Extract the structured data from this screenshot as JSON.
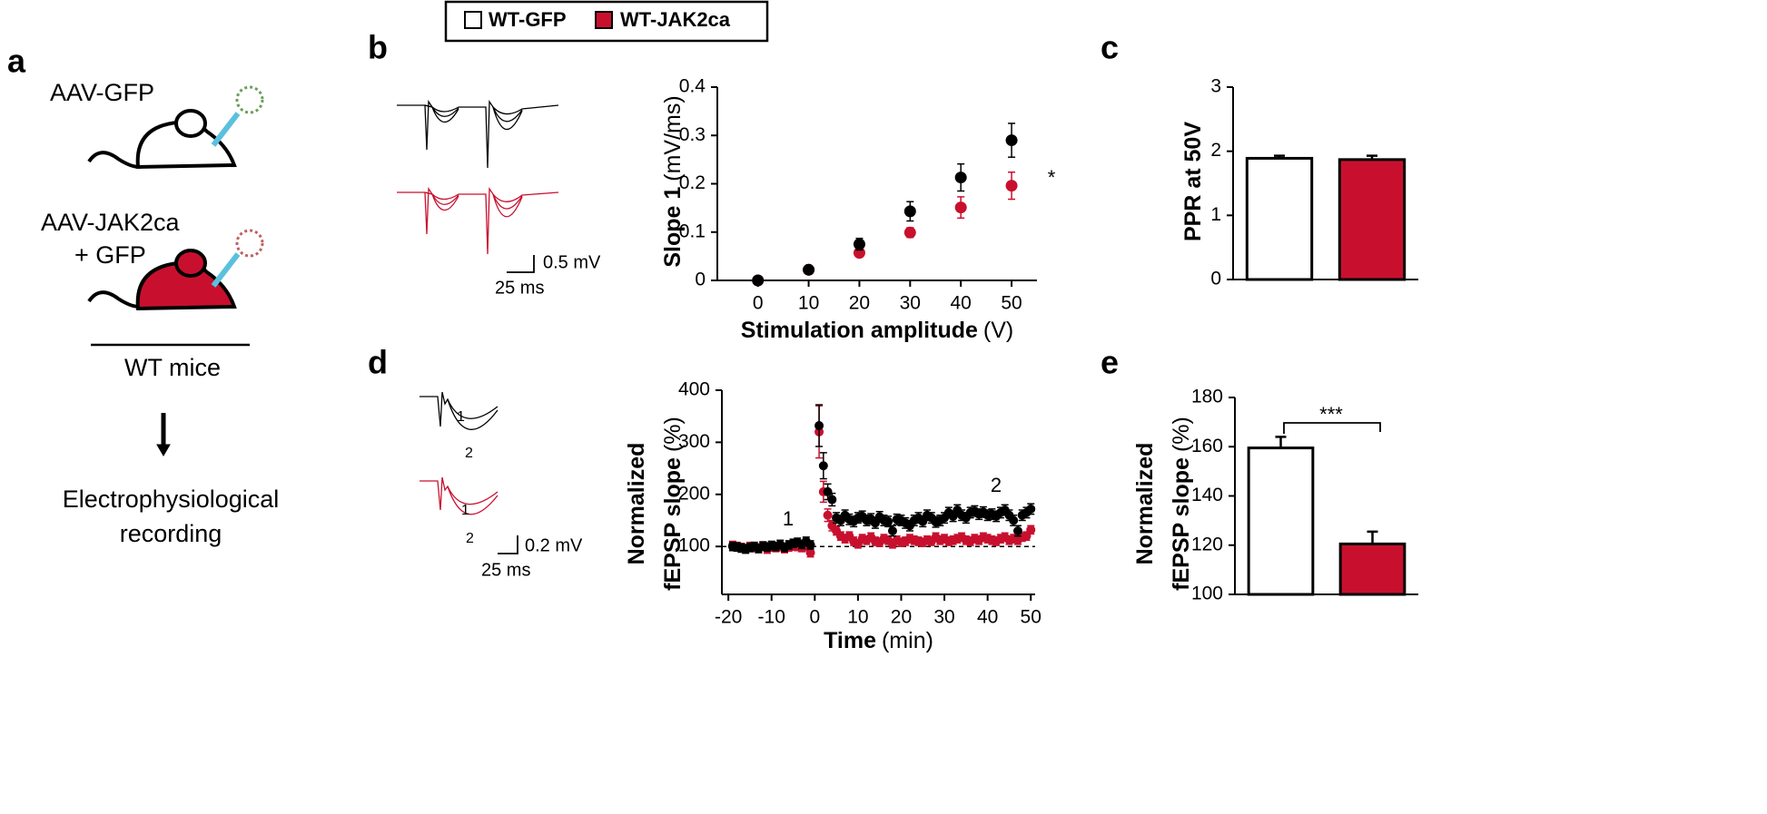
{
  "legend_title": null,
  "panel_labels": [
    "a",
    "b",
    "c",
    "d",
    "e"
  ],
  "schematic": {
    "group1": "AAV-GFP",
    "group2": [
      "AAV-JAK2ca",
      "+ GFP"
    ],
    "mice": "WT mice",
    "method": [
      "Electrophysiological",
      "recording"
    ]
  },
  "traces": {
    "b": {
      "scale_y": "0.5 mV",
      "scale_x": "25 ms"
    },
    "d": {
      "labels": [
        "1",
        "2",
        "1",
        "2"
      ],
      "scale_y": "0.2 mV",
      "scale_x": "25 ms"
    }
  },
  "chart_data": [
    {
      "type": "scatter",
      "x_label": "Stimulation amplitude",
      "x_unit": "(V)",
      "y_label": "Slope 1",
      "y_unit": "(mV/ms)",
      "x": [
        0,
        10,
        20,
        30,
        40,
        50
      ],
      "xlim": [
        -8,
        55
      ],
      "xticks": [
        0,
        10,
        20,
        30,
        40,
        50
      ],
      "ylim": [
        0,
        0.4
      ],
      "yticks": [
        0,
        0.1,
        0.2,
        0.3,
        0.4
      ],
      "series": [
        {
          "name": "WT-GFP",
          "color": "#000000",
          "values": [
            0,
            0.022,
            0.075,
            0.143,
            0.213,
            0.29
          ],
          "errors": [
            0.002,
            0.003,
            0.012,
            0.02,
            0.028,
            0.035
          ]
        },
        {
          "name": "WT-JAK2ca",
          "color": "#c8102e",
          "values": [
            0,
            0.022,
            0.057,
            0.099,
            0.151,
            0.196
          ],
          "errors": [
            0.002,
            0.003,
            0.005,
            0.01,
            0.022,
            0.028
          ]
        }
      ],
      "annotations": [
        "*"
      ]
    },
    {
      "type": "bar",
      "y_label": "PPR at 50V",
      "categories": [
        null,
        null
      ],
      "values": [
        1.89,
        1.87
      ],
      "errors": [
        0.04,
        0.06
      ],
      "colors": [
        "#ffffff",
        "#c8102e"
      ],
      "ylim": [
        0,
        3
      ],
      "yticks": [
        0,
        1,
        2,
        3
      ]
    },
    {
      "type": "scatter",
      "x_label": "Time",
      "x_unit": "(min)",
      "y_label": [
        "Normalized",
        "fEPSP slope"
      ],
      "y_unit": "(%)",
      "x": [
        -19,
        -18,
        -17,
        -16,
        -15,
        -14,
        -13,
        -12,
        -11,
        -10,
        -9,
        -8,
        -7,
        -6,
        -5,
        -4,
        -3,
        -2,
        -1,
        1,
        2,
        3,
        4,
        5,
        6,
        7,
        8,
        9,
        10,
        11,
        12,
        13,
        14,
        15,
        16,
        17,
        18,
        19,
        20,
        21,
        22,
        23,
        24,
        25,
        26,
        27,
        28,
        29,
        30,
        31,
        32,
        33,
        34,
        35,
        36,
        37,
        38,
        39,
        40,
        41,
        42,
        43,
        44,
        45,
        46,
        47,
        48,
        49,
        50
      ],
      "xlim": [
        -21.5,
        51
      ],
      "xticks": [
        -20,
        -10,
        0,
        10,
        20,
        30,
        40,
        50
      ],
      "ylim": [
        8,
        400
      ],
      "yticks": [
        100,
        200,
        300,
        400
      ],
      "reference_line": 100,
      "series": [
        {
          "name": "WT-GFP",
          "color": "#000000",
          "values": [
            100,
            99,
            97,
            95,
            98,
            100,
            96,
            101,
            99,
            102,
            100,
            104,
            98,
            103,
            106,
            108,
            104,
            110,
            103,
            332,
            255,
            205,
            190,
            155,
            150,
            160,
            152,
            148,
            155,
            158,
            150,
            153,
            145,
            157,
            150,
            148,
            130,
            152,
            150,
            145,
            140,
            150,
            155,
            148,
            160,
            155,
            147,
            150,
            155,
            165,
            158,
            170,
            160,
            155,
            165,
            168,
            162,
            166,
            160,
            162,
            158,
            165,
            170,
            160,
            150,
            130,
            160,
            165,
            172
          ],
          "errors": [
            8,
            8,
            8,
            8,
            8,
            8,
            8,
            8,
            8,
            8,
            8,
            8,
            8,
            8,
            8,
            8,
            8,
            8,
            8,
            40,
            25,
            15,
            12,
            10,
            10,
            10,
            10,
            10,
            10,
            10,
            10,
            10,
            10,
            10,
            10,
            10,
            10,
            10,
            10,
            10,
            10,
            10,
            10,
            10,
            10,
            10,
            10,
            10,
            10,
            10,
            10,
            10,
            10,
            10,
            10,
            10,
            10,
            10,
            10,
            10,
            10,
            10,
            10,
            10,
            10,
            10,
            10,
            10,
            10
          ]
        },
        {
          "name": "WT-JAK2ca",
          "color": "#c8102e",
          "values": [
            102,
            100,
            98,
            96,
            100,
            98,
            97,
            100,
            95,
            99,
            98,
            100,
            96,
            99,
            101,
            100,
            98,
            100,
            88,
            320,
            205,
            160,
            140,
            130,
            120,
            115,
            120,
            110,
            105,
            115,
            112,
            118,
            110,
            108,
            115,
            112,
            105,
            112,
            108,
            110,
            115,
            112,
            110,
            108,
            112,
            110,
            118,
            112,
            115,
            110,
            112,
            115,
            118,
            112,
            110,
            115,
            112,
            118,
            115,
            112,
            110,
            115,
            118,
            112,
            115,
            112,
            118,
            120,
            132
          ],
          "errors": [
            8,
            8,
            8,
            8,
            8,
            8,
            8,
            8,
            8,
            8,
            8,
            8,
            8,
            8,
            8,
            8,
            8,
            8,
            8,
            50,
            20,
            12,
            10,
            8,
            8,
            8,
            8,
            8,
            8,
            8,
            8,
            8,
            8,
            8,
            8,
            8,
            8,
            8,
            8,
            8,
            8,
            8,
            8,
            8,
            8,
            8,
            8,
            8,
            8,
            8,
            8,
            8,
            8,
            8,
            8,
            8,
            8,
            8,
            8,
            8,
            8,
            8,
            8,
            8,
            8,
            8,
            8,
            8,
            8
          ]
        }
      ],
      "annotations": [
        "1",
        "2"
      ]
    },
    {
      "type": "bar",
      "y_label": [
        "Normalized",
        "fEPSP slope"
      ],
      "y_unit": "(%)",
      "categories": [
        null,
        null
      ],
      "values": [
        159.5,
        120.5
      ],
      "errors": [
        4.5,
        5
      ],
      "colors": [
        "#ffffff",
        "#c8102e"
      ],
      "ylim": [
        100,
        180
      ],
      "yticks": [
        100,
        120,
        140,
        160,
        180
      ],
      "annotations": [
        "***"
      ]
    }
  ]
}
